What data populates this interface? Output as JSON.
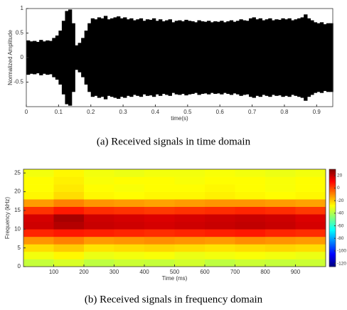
{
  "chart_data": [
    {
      "type": "bar",
      "caption": "(a)  Received signals in time domain",
      "xlabel": "time(s)",
      "ylabel": "Normalized Amplitude",
      "color": "#000000",
      "x": [
        0,
        0.01,
        0.02,
        0.03,
        0.04,
        0.05,
        0.06,
        0.07,
        0.08,
        0.09,
        0.1,
        0.11,
        0.12,
        0.13,
        0.14,
        0.15,
        0.16,
        0.17,
        0.18,
        0.19,
        0.2,
        0.21,
        0.22,
        0.23,
        0.24,
        0.25,
        0.26,
        0.27,
        0.28,
        0.29,
        0.3,
        0.31,
        0.32,
        0.33,
        0.34,
        0.35,
        0.36,
        0.37,
        0.38,
        0.39,
        0.4,
        0.41,
        0.42,
        0.43,
        0.44,
        0.45,
        0.46,
        0.47,
        0.48,
        0.49,
        0.5,
        0.51,
        0.52,
        0.53,
        0.54,
        0.55,
        0.56,
        0.57,
        0.58,
        0.59,
        0.6,
        0.61,
        0.62,
        0.63,
        0.64,
        0.65,
        0.66,
        0.67,
        0.68,
        0.69,
        0.7,
        0.71,
        0.72,
        0.73,
        0.74,
        0.75,
        0.76,
        0.77,
        0.78,
        0.79,
        0.8,
        0.81,
        0.82,
        0.83,
        0.84,
        0.85,
        0.86,
        0.87,
        0.88,
        0.89,
        0.9,
        0.91,
        0.92,
        0.93,
        0.94
      ],
      "values": [
        0.35,
        0.33,
        0.34,
        0.32,
        0.36,
        0.33,
        0.35,
        0.34,
        0.4,
        0.45,
        0.55,
        0.75,
        0.95,
        0.98,
        0.7,
        0.25,
        0.3,
        0.4,
        0.55,
        0.7,
        0.8,
        0.78,
        0.82,
        0.8,
        0.85,
        0.78,
        0.8,
        0.82,
        0.84,
        0.8,
        0.82,
        0.78,
        0.8,
        0.76,
        0.78,
        0.8,
        0.75,
        0.78,
        0.77,
        0.8,
        0.75,
        0.78,
        0.74,
        0.76,
        0.78,
        0.72,
        0.75,
        0.76,
        0.74,
        0.77,
        0.75,
        0.74,
        0.72,
        0.76,
        0.74,
        0.73,
        0.75,
        0.72,
        0.74,
        0.73,
        0.75,
        0.72,
        0.74,
        0.76,
        0.73,
        0.75,
        0.78,
        0.76,
        0.75,
        0.8,
        0.82,
        0.78,
        0.8,
        0.76,
        0.78,
        0.8,
        0.76,
        0.78,
        0.77,
        0.8,
        0.78,
        0.8,
        0.76,
        0.78,
        0.8,
        0.82,
        0.88,
        0.8,
        0.76,
        0.72,
        0.7,
        0.72,
        0.68,
        0.7,
        0.7
      ],
      "xlim": [
        0,
        0.95
      ],
      "xticks": [
        0,
        0.1,
        0.2,
        0.3,
        0.4,
        0.5,
        0.6,
        0.7,
        0.8,
        0.9
      ],
      "ylim": [
        -1,
        1
      ],
      "yticks": [
        -0.5,
        0,
        0.5,
        1
      ]
    },
    {
      "type": "heatmap",
      "caption": "(b)  Received signals in frequency domain",
      "xlabel": "Time (ms)",
      "ylabel": "Frequency (kHz)",
      "xbins": [
        0,
        100,
        200,
        300,
        400,
        500,
        600,
        700,
        800,
        900,
        1000
      ],
      "ybins": [
        0,
        2,
        4,
        6,
        8,
        10,
        12,
        14,
        16,
        18,
        20,
        22,
        24,
        26
      ],
      "z": [
        [
          -37,
          -34,
          -38,
          -36,
          -37,
          -35,
          -38,
          -36,
          -37,
          -36
        ],
        [
          -30,
          -27,
          -31,
          -30,
          -29,
          -31,
          -30,
          -29,
          -30,
          -31
        ],
        [
          -23,
          -20,
          -24,
          -23,
          -22,
          -23,
          -24,
          -23,
          -22,
          -23
        ],
        [
          -12,
          -9,
          -13,
          -12,
          -11,
          -12,
          -13,
          -11,
          -12,
          -13
        ],
        [
          5,
          7,
          6,
          5,
          4,
          5,
          6,
          7,
          5,
          4
        ],
        [
          18,
          22,
          19,
          18,
          17,
          18,
          19,
          20,
          19,
          17
        ],
        [
          17,
          24,
          18,
          17,
          16,
          17,
          18,
          19,
          18,
          16
        ],
        [
          3,
          7,
          4,
          3,
          2,
          3,
          4,
          5,
          4,
          2
        ],
        [
          -13,
          -9,
          -12,
          -13,
          -14,
          -13,
          -12,
          -12,
          -13,
          -14
        ],
        [
          -27,
          -23,
          -27,
          -28,
          -27,
          -27,
          -26,
          -27,
          -28,
          -27
        ],
        [
          -28,
          -25,
          -28,
          -29,
          -28,
          -28,
          -27,
          -28,
          -29,
          -28
        ],
        [
          -28,
          -26,
          -29,
          -28,
          -28,
          -29,
          -28,
          -28,
          -29,
          -28
        ],
        [
          -30,
          -27,
          -30,
          -31,
          -30,
          -30,
          -29,
          -30,
          -31,
          -30
        ]
      ],
      "xlim": [
        0,
        1000
      ],
      "xticks": [
        100,
        200,
        300,
        400,
        500,
        600,
        700,
        800,
        900
      ],
      "ylim": [
        0,
        26
      ],
      "yticks": [
        0,
        5,
        10,
        15,
        20,
        25
      ],
      "clim": [
        -125,
        30
      ],
      "cticks": [
        20,
        0,
        -20,
        -40,
        -60,
        -80,
        -100,
        -120
      ],
      "colormap": "jet"
    }
  ]
}
